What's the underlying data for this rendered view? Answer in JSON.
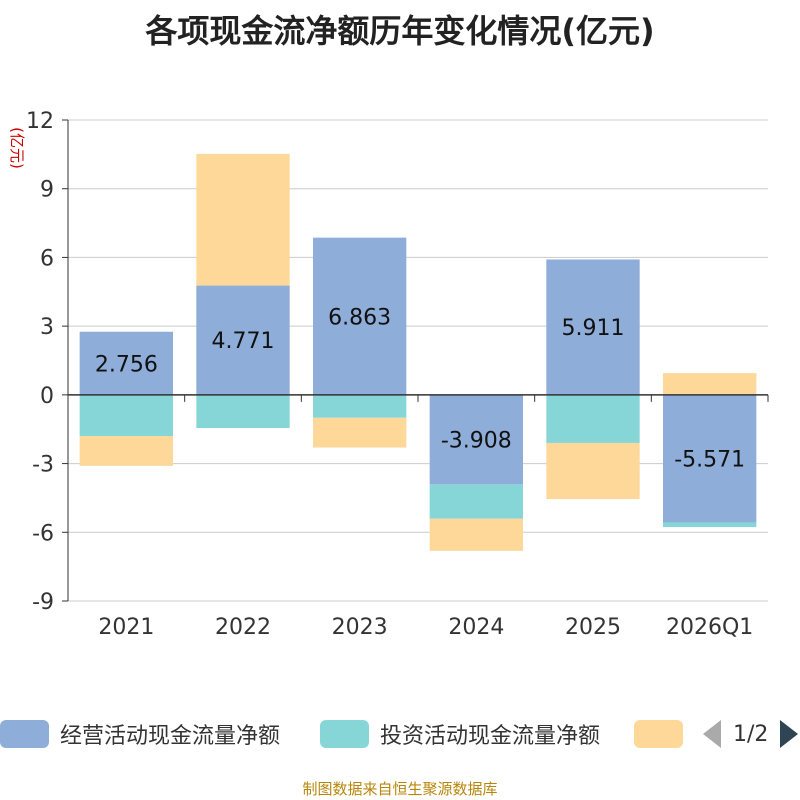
{
  "chart_data": {
    "type": "bar",
    "stacked": true,
    "title": "各项现金流净额历年变化情况(亿元)",
    "ylabel": "(亿元)",
    "xlabel": "",
    "ylim": [
      -9,
      12
    ],
    "yticks": [
      -9,
      -6,
      -3,
      0,
      3,
      6,
      9,
      12
    ],
    "categories": [
      "2021",
      "2022",
      "2023",
      "2024",
      "2025",
      "2026Q1"
    ],
    "series": [
      {
        "name": "经营活动现金流量净额",
        "color": "#8eadd9",
        "values": [
          2.756,
          4.771,
          6.863,
          -3.908,
          5.911,
          -5.571
        ],
        "show_labels": true
      },
      {
        "name": "投资活动现金流量净额",
        "color": "#86d6d8",
        "values": [
          -1.8,
          -1.45,
          -1.0,
          -1.5,
          -2.1,
          -0.2
        ],
        "show_labels": false
      },
      {
        "name": "",
        "color": "#fdd898",
        "values": [
          -1.3,
          5.75,
          -1.3,
          -1.4,
          -2.45,
          0.95
        ],
        "show_labels": false
      }
    ]
  },
  "legend": {
    "page_text": "1/2"
  },
  "source": "制图数据来自恒生聚源数据库"
}
